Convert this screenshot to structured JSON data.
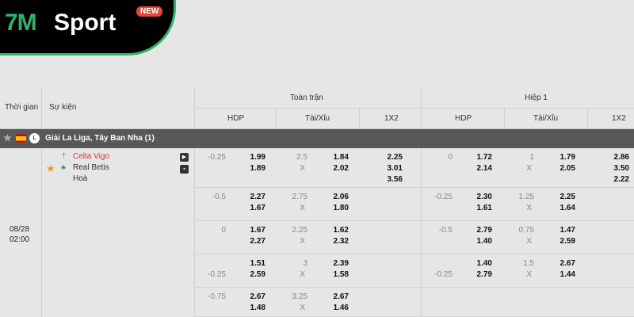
{
  "logo": {
    "brand_7m": "7M",
    "brand_sport": "Sport",
    "badge": "NEW"
  },
  "header": {
    "time": "Thời gian",
    "event": "Sự kiện",
    "full_time": "Toàn trận",
    "half1": "Hiệp 1",
    "hdp": "HDP",
    "ou": "Tài/Xỉu",
    "x12": "1X2"
  },
  "league": {
    "name": "Giải La Liga, Tây Ban Nha (1)",
    "flag": "spain-flag",
    "favorite": false
  },
  "match": {
    "date": "08/28",
    "time": "02:00",
    "home": "Celta Vigo",
    "away": "Real Betis",
    "draw": "Hoà",
    "home_color": "#e03030",
    "favorite": true
  },
  "rows": [
    {
      "ft": {
        "hdp_line": "-0.25",
        "hdp_pos": "top",
        "hdp_home": "1.99",
        "hdp_away": "1.89",
        "ou_line": "2.5",
        "ou_x": "X",
        "ou_over": "1.84",
        "ou_under": "2.02",
        "x12": [
          "2.25",
          "3.01",
          "3.56"
        ]
      },
      "h1": {
        "hdp_line": "0",
        "hdp_pos": "top",
        "hdp_home": "1.72",
        "hdp_away": "2.14",
        "ou_line": "1",
        "ou_x": "X",
        "ou_over": "1.79",
        "ou_under": "2.05",
        "x12": [
          "2.86",
          "3.50",
          "2.22"
        ]
      }
    },
    {
      "ft": {
        "hdp_line": "-0.5",
        "hdp_pos": "top",
        "hdp_home": "2.27",
        "hdp_away": "1.67",
        "ou_line": "2.75",
        "ou_x": "X",
        "ou_over": "2.06",
        "ou_under": "1.80"
      },
      "h1": {
        "hdp_line": "-0.25",
        "hdp_pos": "top",
        "hdp_home": "2.30",
        "hdp_away": "1.61",
        "ou_line": "1.25",
        "ou_x": "X",
        "ou_over": "2.25",
        "ou_under": "1.64"
      }
    },
    {
      "ft": {
        "hdp_line": "0",
        "hdp_pos": "top",
        "hdp_home": "1.67",
        "hdp_away": "2.27",
        "ou_line": "2.25",
        "ou_x": "X",
        "ou_over": "1.62",
        "ou_under": "2.32"
      },
      "h1": {
        "hdp_line": "-0.5",
        "hdp_pos": "top",
        "hdp_home": "2.79",
        "hdp_away": "1.40",
        "ou_line": "0.75",
        "ou_x": "X",
        "ou_over": "1.47",
        "ou_under": "2.59"
      }
    },
    {
      "ft": {
        "hdp_line": "-0.25",
        "hdp_pos": "bottom",
        "hdp_home": "1.51",
        "hdp_away": "2.59",
        "ou_line": "3",
        "ou_x": "X",
        "ou_over": "2.39",
        "ou_under": "1.58"
      },
      "h1": {
        "hdp_line": "-0.25",
        "hdp_pos": "bottom",
        "hdp_home": "1.40",
        "hdp_away": "2.79",
        "ou_line": "1.5",
        "ou_x": "X",
        "ou_over": "2.67",
        "ou_under": "1.44"
      }
    },
    {
      "ft": {
        "hdp_line": "-0.75",
        "hdp_pos": "top",
        "hdp_home": "2.67",
        "hdp_away": "1.48",
        "ou_line": "3.25",
        "ou_x": "X",
        "ou_over": "2.67",
        "ou_under": "1.46"
      }
    }
  ]
}
